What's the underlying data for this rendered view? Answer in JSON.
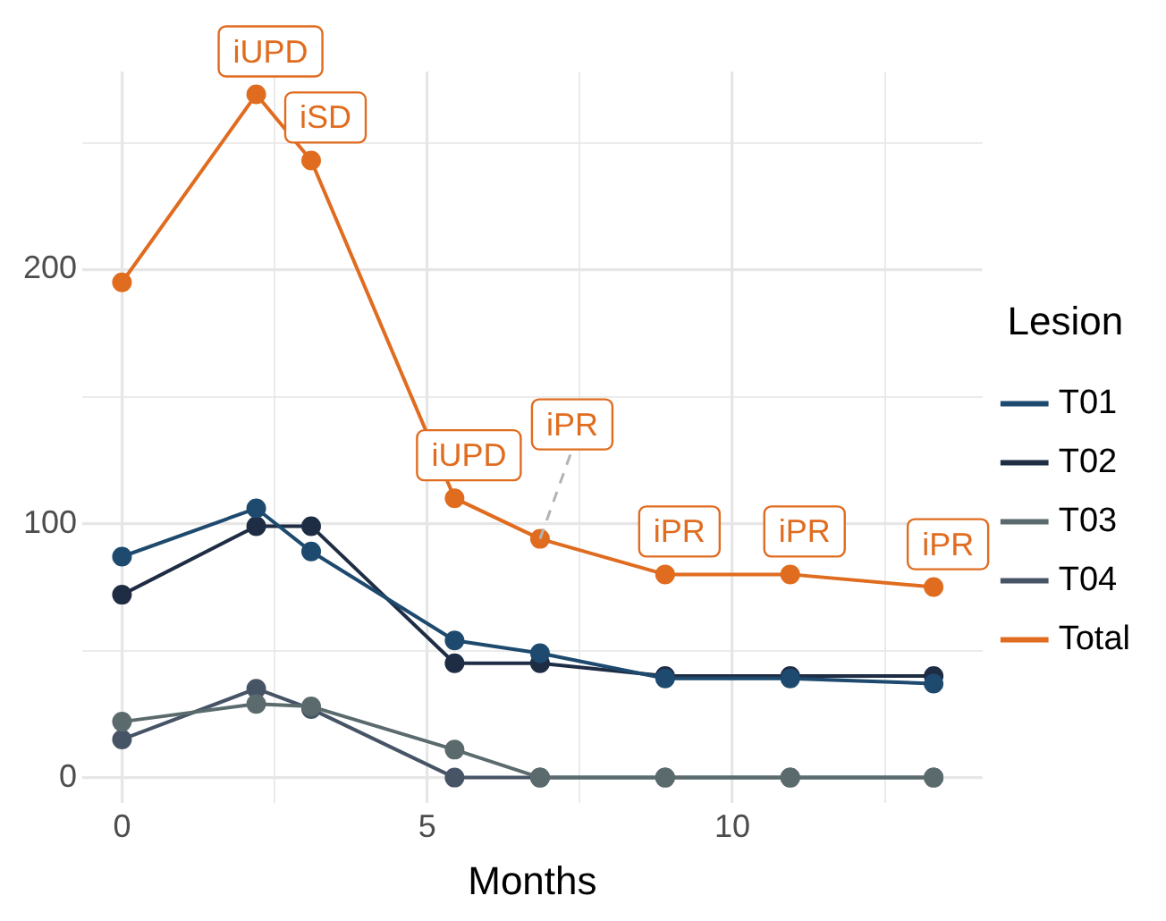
{
  "chart_data": {
    "type": "line",
    "xlabel": "Months",
    "legend_title": "Lesion",
    "legend": "right",
    "grid": true,
    "marker": "circle",
    "line_style": "solid",
    "xlim": [
      -0.65,
      14.1
    ],
    "xticks": [
      0,
      {
        "value": 2.5,
        "label": null
      },
      5,
      {
        "value": 7.5,
        "label": null
      },
      10,
      {
        "value": 12.5,
        "label": null
      }
    ],
    "ylim": [
      -10,
      278
    ],
    "yticks": [
      0,
      {
        "value": 50,
        "label": null
      },
      100,
      {
        "value": 150,
        "label": null
      },
      200,
      {
        "value": 250,
        "label": null
      }
    ],
    "x": [
      0,
      2.2,
      3.1,
      5.45,
      6.85,
      8.9,
      10.95,
      13.3
    ],
    "series": [
      {
        "name": "T01",
        "color": "#1d4a6e",
        "values": [
          87,
          106,
          89,
          54,
          49,
          39,
          39,
          37
        ]
      },
      {
        "name": "T02",
        "color": "#1f2d44",
        "values": [
          72,
          99,
          99,
          45,
          45,
          40,
          40,
          40
        ]
      },
      {
        "name": "T03",
        "color": "#5b6b6d",
        "values": [
          22,
          29,
          28,
          11,
          0,
          0,
          0,
          0
        ]
      },
      {
        "name": "T04",
        "color": "#465466",
        "values": [
          15,
          35,
          27,
          0,
          0,
          0,
          0,
          0
        ]
      },
      {
        "name": "Total",
        "color": "#e06c1f",
        "values": [
          195,
          269,
          243,
          110,
          94,
          80,
          80,
          75
        ]
      }
    ],
    "annotations": [
      {
        "text": "iUPD",
        "x": 2.2,
        "y": 269
      },
      {
        "text": "iSD",
        "x": 3.1,
        "y": 243
      },
      {
        "text": "iUPD",
        "x": 5.45,
        "y": 110
      },
      {
        "text": "iPR",
        "x": 6.85,
        "y": 94
      },
      {
        "text": "iPR",
        "x": 8.9,
        "y": 80
      },
      {
        "text": "iPR",
        "x": 10.95,
        "y": 80
      },
      {
        "text": "iPR",
        "x": 13.3,
        "y": 75
      }
    ]
  }
}
